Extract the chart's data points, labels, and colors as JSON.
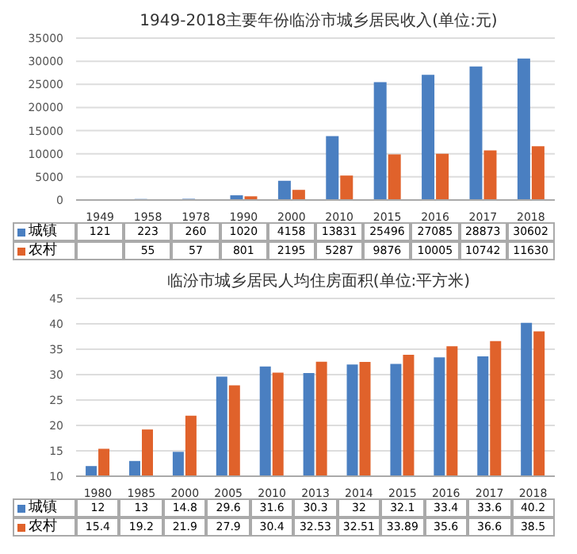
{
  "chart_data": [
    {
      "type": "bar",
      "title": "1949-2018主要年份临汾市城乡居民收入(单位:元)",
      "categories": [
        "1949",
        "1958",
        "1978",
        "1990",
        "2000",
        "2010",
        "2015",
        "2016",
        "2017",
        "2018"
      ],
      "series": [
        {
          "name": "城镇",
          "color": "#4a7fc1",
          "values": [
            121,
            223,
            260,
            1020,
            4158,
            13831,
            25496,
            27085,
            28873,
            30602
          ]
        },
        {
          "name": "农村",
          "color": "#e0622b",
          "values": [
            null,
            55,
            57,
            801,
            2195,
            5287,
            9876,
            10005,
            10742,
            11630
          ]
        }
      ],
      "ylim": [
        0,
        35000
      ],
      "yticks": [
        0,
        5000,
        10000,
        15000,
        20000,
        25000,
        30000,
        35000
      ],
      "grid": "y",
      "legend": "bottom",
      "data_labels": true
    },
    {
      "type": "bar",
      "title": "临汾市城乡居民人均住房面积(单位:平方米)",
      "categories": [
        "1980",
        "1985",
        "2000",
        "2005",
        "2010",
        "2013",
        "2014",
        "2015",
        "2016",
        "2017",
        "2018"
      ],
      "series": [
        {
          "name": "城镇",
          "color": "#4a7fc1",
          "values": [
            12,
            13,
            14.8,
            29.6,
            31.6,
            30.3,
            32,
            32.1,
            33.4,
            33.6,
            40.2
          ]
        },
        {
          "name": "农村",
          "color": "#e0622b",
          "values": [
            15.4,
            19.2,
            21.9,
            27.9,
            30.4,
            32.53,
            32.51,
            33.89,
            35.6,
            36.6,
            38.5
          ]
        }
      ],
      "ylim": [
        10,
        45
      ],
      "yticks": [
        10,
        15,
        20,
        25,
        30,
        35,
        40,
        45
      ],
      "grid": "y",
      "legend": "bottom",
      "data_labels": true
    }
  ]
}
